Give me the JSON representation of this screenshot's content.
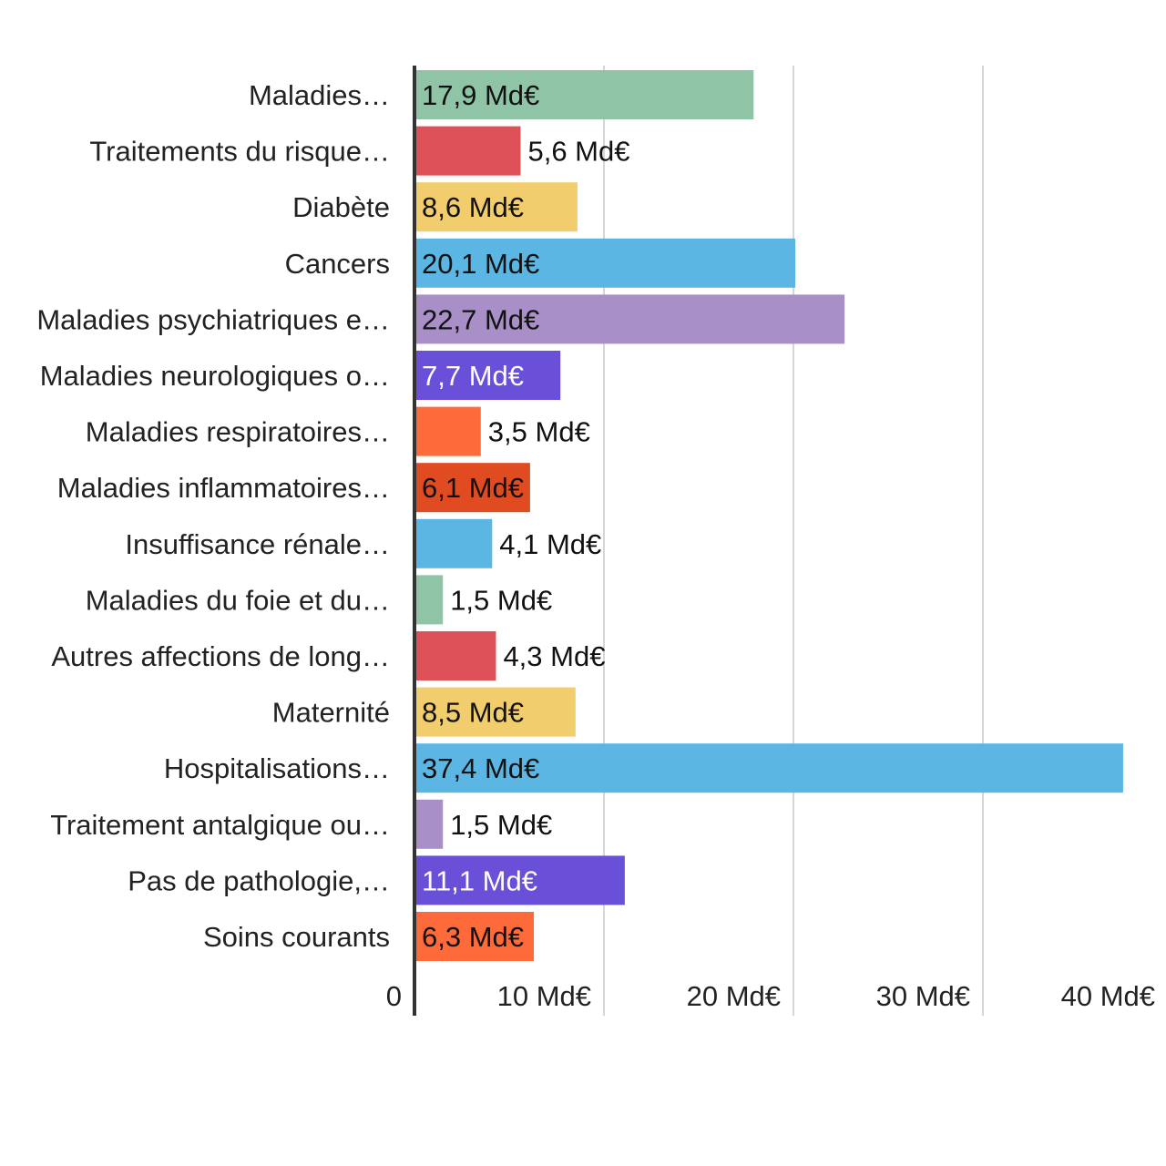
{
  "chart_data": {
    "type": "bar",
    "orientation": "horizontal",
    "title": "",
    "xlabel": "",
    "ylabel": "",
    "categories": [
      "Maladies…",
      "Traitements du risque…",
      "Diabète",
      "Cancers",
      "Maladies psychiatriques e…",
      "Maladies neurologiques o…",
      "Maladies respiratoires…",
      "Maladies inflammatoires…",
      "Insuffisance rénale…",
      "Maladies du foie et du…",
      "Autres affections de long…",
      "Maternité",
      "Hospitalisations…",
      "Traitement antalgique ou…",
      "Pas de pathologie,…",
      "Soins courants"
    ],
    "values": [
      17.9,
      5.6,
      8.6,
      20.1,
      22.7,
      7.7,
      3.5,
      6.1,
      4.1,
      1.5,
      4.3,
      8.5,
      37.4,
      1.5,
      11.1,
      6.3
    ],
    "value_labels": [
      "17,9 Md€",
      "5,6 Md€",
      "8,6 Md€",
      "20,1 Md€",
      "22,7 Md€",
      "7,7 Md€",
      "3,5 Md€",
      "6,1 Md€",
      "4,1 Md€",
      "1,5 Md€",
      "4,3 Md€",
      "8,5 Md€",
      "37,4 Md€",
      "1,5 Md€",
      "11,1 Md€",
      "6,3 Md€"
    ],
    "colors": [
      "#8fc5a6",
      "#de5158",
      "#f2cd6e",
      "#5cb6e4",
      "#a98fc8",
      "#6a4fd8",
      "#ff6a3a",
      "#e04b22",
      "#5cb6e4",
      "#8fc5a6",
      "#de5158",
      "#f2cd6e",
      "#5cb6e4",
      "#a98fc8",
      "#6a4fd8",
      "#ff6a3a"
    ],
    "label_colors": [
      "#111111",
      "#111111",
      "#111111",
      "#111111",
      "#111111",
      "#ffffff",
      "#111111",
      "#111111",
      "#111111",
      "#111111",
      "#111111",
      "#111111",
      "#111111",
      "#111111",
      "#ffffff",
      "#111111"
    ],
    "xlim": [
      0,
      40
    ],
    "x_ticks": [
      0,
      10,
      20,
      30,
      40
    ],
    "x_tick_labels": [
      "0",
      "10 Md€",
      "20 Md€",
      "30 Md€",
      "40 Md€"
    ],
    "grid": true,
    "legend": "none"
  }
}
